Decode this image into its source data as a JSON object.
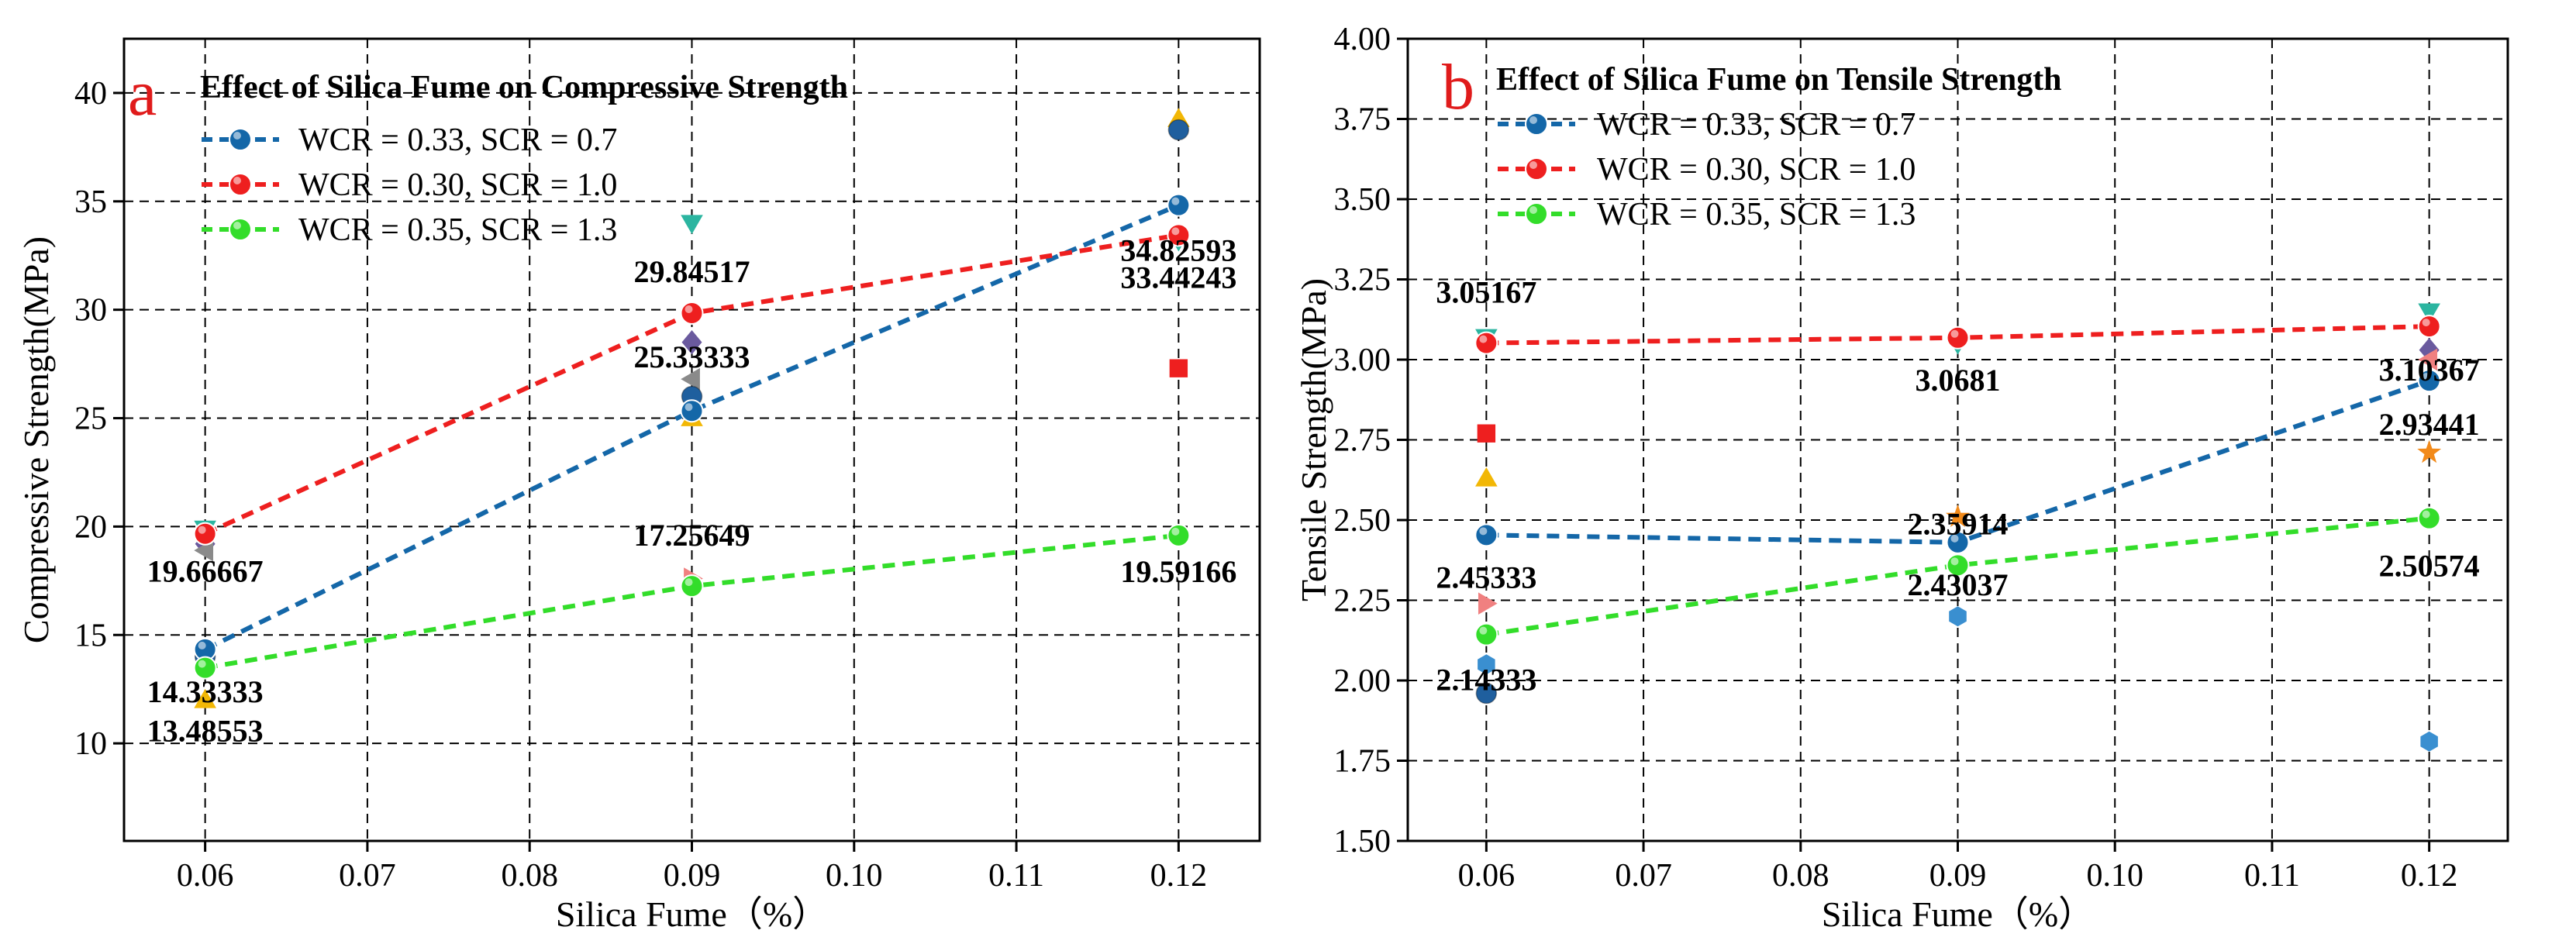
{
  "colors": {
    "blue": "#1467a8",
    "red": "#ee1f1f",
    "green": "#33dd2a",
    "letter": "#e01b1b"
  },
  "chart_data": [
    {
      "id": "a",
      "panel_letter": "a",
      "type": "line",
      "title": "Effect of Silica Fume on Compressive Strength",
      "xlabel": "Silica Fume（%）",
      "ylabel": "Compressive Strength(MPa)",
      "xlim": [
        0.055,
        0.125
      ],
      "ylim": [
        5.5,
        42.5
      ],
      "x_ticks": [
        0.06,
        0.07,
        0.08,
        0.09,
        0.1,
        0.11,
        0.12
      ],
      "x_tick_labels": [
        "0.06",
        "0.07",
        "0.08",
        "0.09",
        "0.10",
        "0.11",
        "0.12"
      ],
      "y_ticks": [
        10,
        15,
        20,
        25,
        30,
        35,
        40
      ],
      "y_tick_labels": [
        "10",
        "15",
        "20",
        "25",
        "30",
        "35",
        "40"
      ],
      "grid": true,
      "legend_position": "top-left",
      "x": [
        0.06,
        0.09,
        0.12
      ],
      "series": [
        {
          "name": "WCR = 0.33, SCR = 0.7",
          "color": "#1467a8",
          "values": [
            14.33333,
            25.33333,
            34.82593
          ],
          "labels": [
            "14.33333",
            "25.33333",
            "34.82593"
          ]
        },
        {
          "name": "WCR = 0.30, SCR = 1.0",
          "color": "#ee1f1f",
          "values": [
            19.66667,
            29.84517,
            33.44243
          ],
          "labels": [
            "19.66667",
            "29.84517",
            "33.44243"
          ]
        },
        {
          "name": "WCR = 0.35, SCR = 1.3",
          "color": "#33dd2a",
          "values": [
            13.48553,
            17.25649,
            19.59166
          ],
          "labels": [
            "13.48553",
            "17.25649",
            "19.59166"
          ]
        }
      ],
      "scatter_points": [
        {
          "x": 0.06,
          "y": 19.9,
          "shape": "triangle-down",
          "color": "#2bb5a0"
        },
        {
          "x": 0.06,
          "y": 19.2,
          "shape": "diamond",
          "color": "#6a5a9e"
        },
        {
          "x": 0.06,
          "y": 18.9,
          "shape": "triangle-left",
          "color": "#8a8a8a"
        },
        {
          "x": 0.06,
          "y": 14.0,
          "shape": "circle",
          "color": "#1f5f9e"
        },
        {
          "x": 0.06,
          "y": 12.0,
          "shape": "triangle-up",
          "color": "#f2b705"
        },
        {
          "x": 0.09,
          "y": 34.0,
          "shape": "triangle-down",
          "color": "#2bb5a0"
        },
        {
          "x": 0.09,
          "y": 28.5,
          "shape": "diamond",
          "color": "#6a5a9e"
        },
        {
          "x": 0.09,
          "y": 26.8,
          "shape": "triangle-left",
          "color": "#8a8a8a"
        },
        {
          "x": 0.09,
          "y": 26.0,
          "shape": "circle",
          "color": "#1f5f9e"
        },
        {
          "x": 0.09,
          "y": 25.0,
          "shape": "triangle-up",
          "color": "#f2b705"
        },
        {
          "x": 0.09,
          "y": 17.6,
          "shape": "triangle-right",
          "color": "#f08080"
        },
        {
          "x": 0.12,
          "y": 38.8,
          "shape": "triangle-up",
          "color": "#f2b705"
        },
        {
          "x": 0.12,
          "y": 38.3,
          "shape": "circle",
          "color": "#1f5f9e"
        },
        {
          "x": 0.12,
          "y": 33.2,
          "shape": "triangle-down",
          "color": "#2bb5a0"
        },
        {
          "x": 0.12,
          "y": 27.3,
          "shape": "square",
          "color": "#ee1f1f"
        }
      ]
    },
    {
      "id": "b",
      "panel_letter": "b",
      "type": "line",
      "title": "Effect of Silica Fume on Tensile Strength",
      "xlabel": "Silica Fume（%）",
      "ylabel": "Tensile Strength(MPa)",
      "xlim": [
        0.055,
        0.125
      ],
      "ylim": [
        1.5,
        4.0
      ],
      "x_ticks": [
        0.06,
        0.07,
        0.08,
        0.09,
        0.1,
        0.11,
        0.12
      ],
      "x_tick_labels": [
        "0.06",
        "0.07",
        "0.08",
        "0.09",
        "0.10",
        "0.11",
        "0.12"
      ],
      "y_ticks": [
        1.5,
        1.75,
        2.0,
        2.25,
        2.5,
        2.75,
        3.0,
        3.25,
        3.5,
        3.75,
        4.0
      ],
      "y_tick_labels": [
        "1.50",
        "1.75",
        "2.00",
        "2.25",
        "2.50",
        "2.75",
        "3.00",
        "3.25",
        "3.50",
        "3.75",
        "4.00"
      ],
      "grid": true,
      "legend_position": "top-left",
      "x": [
        0.06,
        0.09,
        0.12
      ],
      "series": [
        {
          "name": "WCR = 0.33, SCR = 0.7",
          "color": "#1467a8",
          "values": [
            2.45333,
            2.43037,
            2.93441
          ],
          "labels": [
            "2.45333",
            "2.43037",
            "2.93441"
          ]
        },
        {
          "name": "WCR = 0.30, SCR = 1.0",
          "color": "#ee1f1f",
          "values": [
            3.05167,
            3.0681,
            3.10367
          ],
          "labels": [
            "3.05167",
            "3.0681",
            "3.10367"
          ]
        },
        {
          "name": "WCR = 0.35, SCR = 1.3",
          "color": "#33dd2a",
          "values": [
            2.14333,
            2.35914,
            2.50574
          ],
          "labels": [
            "2.14333",
            "2.35914",
            "2.50574"
          ]
        }
      ],
      "scatter_points": [
        {
          "x": 0.06,
          "y": 3.07,
          "shape": "triangle-down",
          "color": "#2bb5a0"
        },
        {
          "x": 0.06,
          "y": 2.77,
          "shape": "square",
          "color": "#ee1f1f"
        },
        {
          "x": 0.06,
          "y": 2.63,
          "shape": "triangle-up",
          "color": "#f2b705"
        },
        {
          "x": 0.06,
          "y": 2.24,
          "shape": "triangle-right",
          "color": "#f08080"
        },
        {
          "x": 0.06,
          "y": 2.05,
          "shape": "hexagon",
          "color": "#3a8fd0"
        },
        {
          "x": 0.06,
          "y": 1.96,
          "shape": "circle",
          "color": "#1f5f9e"
        },
        {
          "x": 0.09,
          "y": 3.05,
          "shape": "triangle-down",
          "color": "#2bb5a0"
        },
        {
          "x": 0.09,
          "y": 2.51,
          "shape": "star",
          "color": "#f28a1a"
        },
        {
          "x": 0.09,
          "y": 2.2,
          "shape": "hexagon",
          "color": "#3a8fd0"
        },
        {
          "x": 0.12,
          "y": 3.15,
          "shape": "triangle-down",
          "color": "#2bb5a0"
        },
        {
          "x": 0.12,
          "y": 3.03,
          "shape": "diamond",
          "color": "#6a5a9e"
        },
        {
          "x": 0.12,
          "y": 3.0,
          "shape": "triangle-left",
          "color": "#f08080"
        },
        {
          "x": 0.12,
          "y": 2.71,
          "shape": "star",
          "color": "#f28a1a"
        },
        {
          "x": 0.12,
          "y": 1.81,
          "shape": "hexagon",
          "color": "#3a8fd0"
        }
      ]
    }
  ]
}
